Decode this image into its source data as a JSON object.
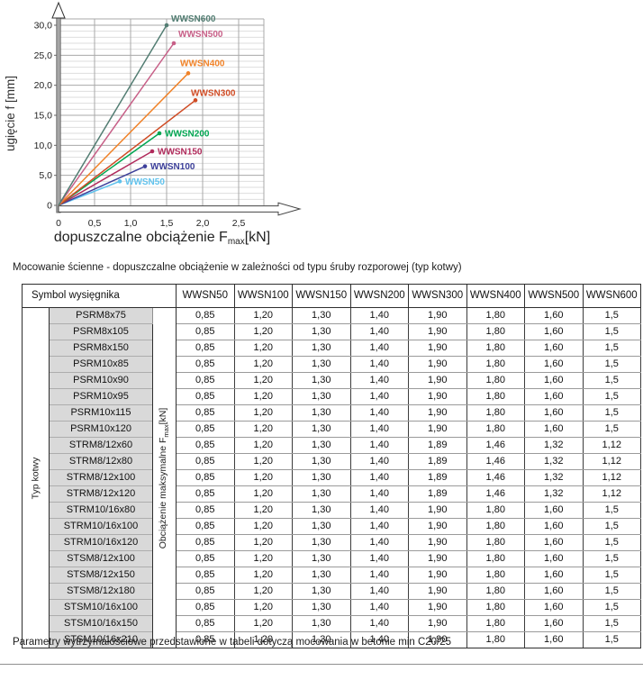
{
  "captions": {
    "table_title": "Mocowanie ścienne - dopuszczalne obciążenie w zależności od typu śruby rozporowej (typ kotwy)",
    "footnote": "Parametry wytrzymałościowe przedstawione w tabeli dotyczą mocowania w betonie min C20/25"
  },
  "chart_data": {
    "type": "line",
    "title": "",
    "xlabel": "dopuszczalne obciążenie Fmax [kN]",
    "xlabel_parts": {
      "main": "dopuszczalne obciążenie F",
      "sub": "max",
      "unit": "[kN]"
    },
    "ylabel": "ugięcie f [mm]",
    "xlim": [
      0,
      2.5
    ],
    "ylim": [
      0,
      30
    ],
    "grid": true,
    "legend_position": "inline-labels",
    "x_tick_values": [
      0,
      0.5,
      1.0,
      1.5,
      2.0,
      2.5
    ],
    "x_tick_labels": [
      "0",
      "0,5",
      "1,0",
      "1,5",
      "2,0",
      "2,5"
    ],
    "y_tick_values": [
      0,
      5,
      10,
      15,
      20,
      25,
      30
    ],
    "y_tick_labels": [
      "0",
      "5,0",
      "10,0",
      "15,0",
      "20,0",
      "25,0",
      "30,0"
    ],
    "series": [
      {
        "name": "WWSN50",
        "color": "#5fc2ed",
        "points": [
          [
            0,
            0
          ],
          [
            0.85,
            4.0
          ]
        ],
        "label_offset": [
          6,
          3.5
        ]
      },
      {
        "name": "WWSN100",
        "color": "#3c3f99",
        "points": [
          [
            0,
            0
          ],
          [
            1.2,
            6.5
          ]
        ],
        "label_offset": [
          6,
          3.5
        ]
      },
      {
        "name": "WWSN150",
        "color": "#b02a5b",
        "points": [
          [
            0,
            0
          ],
          [
            1.3,
            9.0
          ]
        ],
        "label_offset": [
          6,
          3.5
        ]
      },
      {
        "name": "WWSN200",
        "color": "#00a651",
        "points": [
          [
            0,
            0
          ],
          [
            1.4,
            12.0
          ]
        ],
        "label_offset": [
          6,
          3.5
        ]
      },
      {
        "name": "WWSN300",
        "color": "#cf4b24",
        "points": [
          [
            0,
            0
          ],
          [
            1.9,
            17.5
          ]
        ],
        "label_offset": [
          -5,
          -5
        ]
      },
      {
        "name": "WWSN400",
        "color": "#f08228",
        "points": [
          [
            0,
            0
          ],
          [
            1.8,
            22.0
          ]
        ],
        "label_offset": [
          -9,
          -8
        ]
      },
      {
        "name": "WWSN500",
        "color": "#c75f87",
        "points": [
          [
            0,
            0
          ],
          [
            1.6,
            27.0
          ]
        ],
        "label_offset": [
          5,
          -7
        ]
      },
      {
        "name": "WWSN600",
        "color": "#527d72",
        "points": [
          [
            0,
            0
          ],
          [
            1.5,
            30.0
          ]
        ],
        "label_offset": [
          5,
          -4
        ]
      }
    ]
  },
  "table": {
    "corner_header": "Symbol wysięgnika",
    "col_headers": [
      "WWSN50",
      "WWSN100",
      "WWSN150",
      "WWSN200",
      "WWSN300",
      "WWSN400",
      "WWSN500",
      "WWSN600"
    ],
    "row_group_label": "Typ kotwy",
    "value_label_main": "Obciążenie maksymalne F",
    "value_label_sub": "max",
    "value_label_unit": "[kN]",
    "rows": [
      {
        "name": "PSRM8x75",
        "values": [
          "0,85",
          "1,20",
          "1,30",
          "1,40",
          "1,90",
          "1,80",
          "1,60",
          "1,5"
        ]
      },
      {
        "name": "PSRM8x105",
        "values": [
          "0,85",
          "1,20",
          "1,30",
          "1,40",
          "1,90",
          "1,80",
          "1,60",
          "1,5"
        ]
      },
      {
        "name": "PSRM8x150",
        "values": [
          "0,85",
          "1,20",
          "1,30",
          "1,40",
          "1,90",
          "1,80",
          "1,60",
          "1,5"
        ]
      },
      {
        "name": "PSRM10x85",
        "values": [
          "0,85",
          "1,20",
          "1,30",
          "1,40",
          "1,90",
          "1,80",
          "1,60",
          "1,5"
        ]
      },
      {
        "name": "PSRM10x90",
        "values": [
          "0,85",
          "1,20",
          "1,30",
          "1,40",
          "1,90",
          "1,80",
          "1,60",
          "1,5"
        ]
      },
      {
        "name": "PSRM10x95",
        "values": [
          "0,85",
          "1,20",
          "1,30",
          "1,40",
          "1,90",
          "1,80",
          "1,60",
          "1,5"
        ]
      },
      {
        "name": "PSRM10x115",
        "values": [
          "0,85",
          "1,20",
          "1,30",
          "1,40",
          "1,90",
          "1,80",
          "1,60",
          "1,5"
        ]
      },
      {
        "name": "PSRM10x120",
        "values": [
          "0,85",
          "1,20",
          "1,30",
          "1,40",
          "1,90",
          "1,80",
          "1,60",
          "1,5"
        ]
      },
      {
        "name": "STRM8/12x60",
        "values": [
          "0,85",
          "1,20",
          "1,30",
          "1,40",
          "1,89",
          "1,46",
          "1,32",
          "1,12"
        ]
      },
      {
        "name": "STRM8/12x80",
        "values": [
          "0,85",
          "1,20",
          "1,30",
          "1,40",
          "1,89",
          "1,46",
          "1,32",
          "1,12"
        ]
      },
      {
        "name": "STRM8/12x100",
        "values": [
          "0,85",
          "1,20",
          "1,30",
          "1,40",
          "1,89",
          "1,46",
          "1,32",
          "1,12"
        ]
      },
      {
        "name": "STRM8/12x120",
        "values": [
          "0,85",
          "1,20",
          "1,30",
          "1,40",
          "1,89",
          "1,46",
          "1,32",
          "1,12"
        ]
      },
      {
        "name": "STRM10/16x80",
        "values": [
          "0,85",
          "1,20",
          "1,30",
          "1,40",
          "1,90",
          "1,80",
          "1,60",
          "1,5"
        ]
      },
      {
        "name": "STRM10/16x100",
        "values": [
          "0,85",
          "1,20",
          "1,30",
          "1,40",
          "1,90",
          "1,80",
          "1,60",
          "1,5"
        ]
      },
      {
        "name": "STRM10/16x120",
        "values": [
          "0,85",
          "1,20",
          "1,30",
          "1,40",
          "1,90",
          "1,80",
          "1,60",
          "1,5"
        ]
      },
      {
        "name": "STSM8/12x100",
        "values": [
          "0,85",
          "1,20",
          "1,30",
          "1,40",
          "1,90",
          "1,80",
          "1,60",
          "1,5"
        ]
      },
      {
        "name": "STSM8/12x150",
        "values": [
          "0,85",
          "1,20",
          "1,30",
          "1,40",
          "1,90",
          "1,80",
          "1,60",
          "1,5"
        ]
      },
      {
        "name": "STSM8/12x180",
        "values": [
          "0,85",
          "1,20",
          "1,30",
          "1,40",
          "1,90",
          "1,80",
          "1,60",
          "1,5"
        ]
      },
      {
        "name": "STSM10/16x100",
        "values": [
          "0,85",
          "1,20",
          "1,30",
          "1,40",
          "1,90",
          "1,80",
          "1,60",
          "1,5"
        ]
      },
      {
        "name": "STSM10/16x150",
        "values": [
          "0,85",
          "1,20",
          "1,30",
          "1,40",
          "1,90",
          "1,80",
          "1,60",
          "1,5"
        ]
      },
      {
        "name": "STSM10/16x210",
        "values": [
          "0,85",
          "1,20",
          "1,30",
          "1,40",
          "1,90",
          "1,80",
          "1,60",
          "1,5"
        ]
      }
    ]
  },
  "colors": {
    "name_cell_bg": "#d9d9d9",
    "grid_minor": "#dedede",
    "grid_major": "#a8a8a8",
    "axis_shaft": "#a6a6a6",
    "border_dark": "#2e2e2e"
  }
}
